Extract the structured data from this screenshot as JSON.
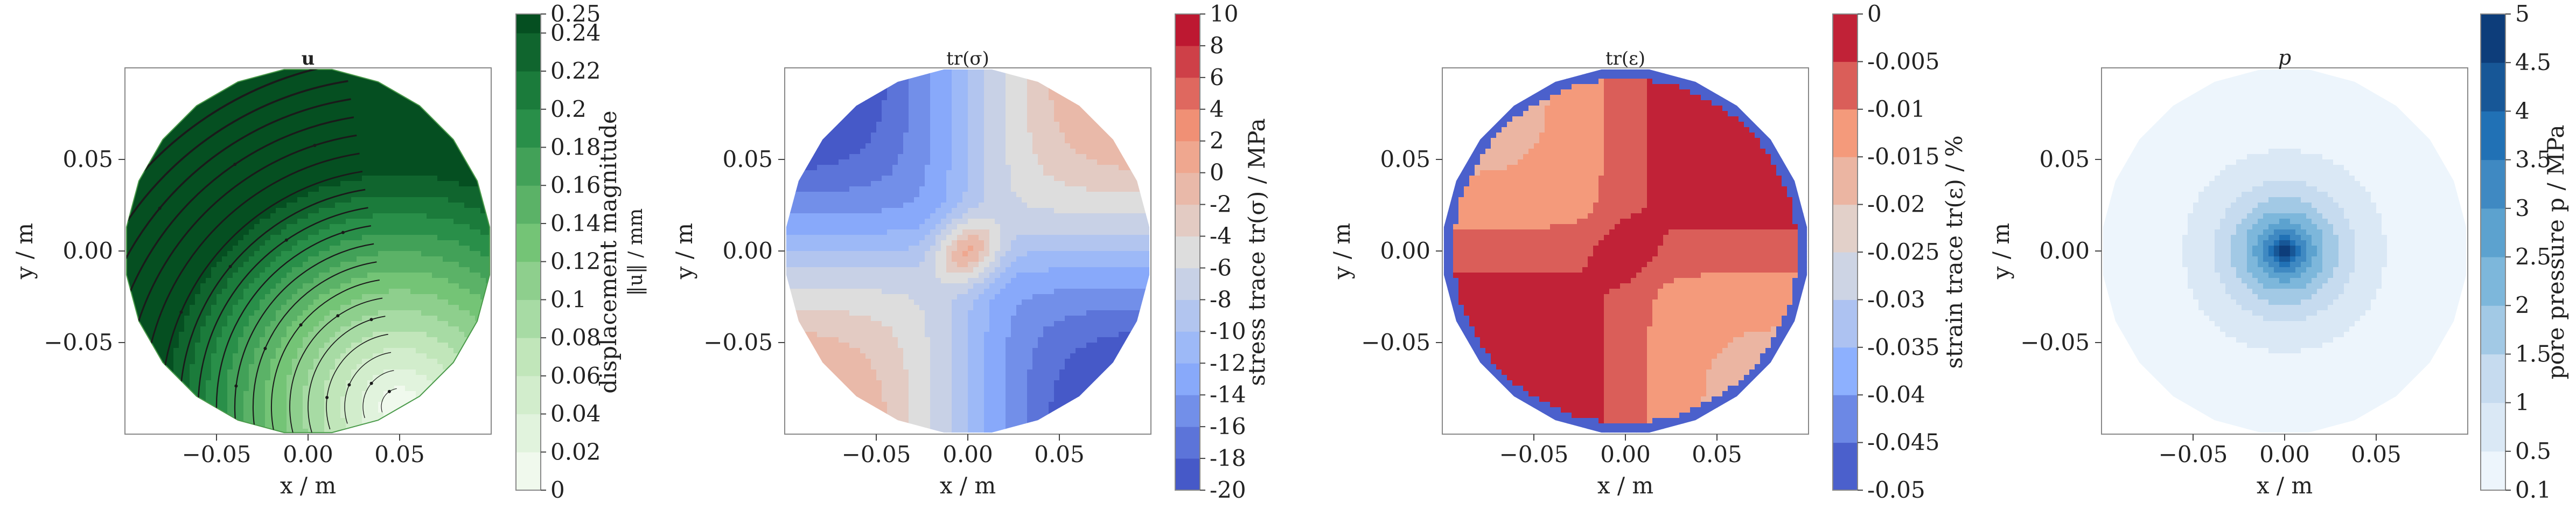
{
  "chart_data": [
    {
      "type": "heatmap",
      "subplot": "displacement",
      "title": "u",
      "xlabel": "x / m",
      "ylabel": "y / m",
      "xlim": [
        -0.1,
        0.1
      ],
      "ylim": [
        -0.1,
        0.1
      ],
      "xticks": [
        "−0.05",
        "0.00",
        "0.05"
      ],
      "yticks": [
        "0.05",
        "0.00",
        "−0.05"
      ],
      "colorbar_label_line1": "displacement magnitude",
      "colorbar_label_line2": "‖u‖ / mm",
      "colorbar_ticks": [
        "0.25",
        "0.24",
        "0.22",
        "0.2",
        "0.18",
        "0.16",
        "0.14",
        "0.12",
        "0.1",
        "0.08",
        "0.06",
        "0.04",
        "0.02",
        "0"
      ],
      "levels": [
        0,
        0.02,
        0.04,
        0.06,
        0.08,
        0.1,
        0.12,
        0.14,
        0.16,
        0.18,
        0.2,
        0.22,
        0.24,
        0.25
      ],
      "colormap": "Greens",
      "overlay": "streamlines",
      "field_description": "magnitude increases from ~0 at bottom-right (x≈0.05,y≈-0.08) to ~0.25 at top-left"
    },
    {
      "type": "heatmap",
      "subplot": "stress_trace",
      "title": "tr(σ)",
      "xlabel": "x / m",
      "ylabel": "y / m",
      "xlim": [
        -0.1,
        0.1
      ],
      "ylim": [
        -0.1,
        0.1
      ],
      "xticks": [
        "−0.05",
        "0.00",
        "0.05"
      ],
      "yticks": [
        "0.05",
        "0.00",
        "−0.05"
      ],
      "colorbar_label": "stress trace tr(σ) / MPa",
      "colorbar_ticks": [
        "10",
        "8",
        "6",
        "4",
        "2",
        "0",
        "-2",
        "-4",
        "-6",
        "-8",
        "-10",
        "-12",
        "-14",
        "-16",
        "-18",
        "-20"
      ],
      "levels": [
        -20,
        -18,
        -16,
        -14,
        -12,
        -10,
        -8,
        -6,
        -4,
        -2,
        0,
        2,
        4,
        6,
        8,
        10
      ],
      "colormap": "coolwarm",
      "field_description": "around -10 in the middle, ~-2 at center, ~-20 toward left and bottom-right edges, ~0 lobes at top-right and bottom-left"
    },
    {
      "type": "heatmap",
      "subplot": "strain_trace",
      "title": "tr(ε)",
      "xlabel": "x / m",
      "ylabel": "y / m",
      "xlim": [
        -0.1,
        0.1
      ],
      "ylim": [
        -0.1,
        0.1
      ],
      "xticks": [
        "−0.05",
        "0.00",
        "0.05"
      ],
      "yticks": [
        "0.05",
        "0.00",
        "−0.05"
      ],
      "colorbar_label": "strain trace tr(ε) / %",
      "colorbar_ticks": [
        "0",
        "-0.005",
        "-0.01",
        "-0.015",
        "-0.02",
        "-0.025",
        "-0.03",
        "-0.035",
        "-0.04",
        "-0.045",
        "-0.05"
      ],
      "levels": [
        -0.05,
        -0.045,
        -0.04,
        -0.035,
        -0.03,
        -0.025,
        -0.02,
        -0.015,
        -0.01,
        -0.005,
        0
      ],
      "colormap": "coolwarm",
      "field_description": "mostly -0.005 to -0.01; ~0 at center and top-right/bottom-left lobes; -0.015 lobes top-left and bottom-right; -0.05 thin ring at boundary"
    },
    {
      "type": "heatmap",
      "subplot": "pore_pressure",
      "title": "p",
      "xlabel": "x / m",
      "ylabel": "y / m",
      "xlim": [
        -0.1,
        0.1
      ],
      "ylim": [
        -0.1,
        0.1
      ],
      "xticks": [
        "−0.05",
        "0.00",
        "0.05"
      ],
      "yticks": [
        "0.05",
        "0.00",
        "−0.05"
      ],
      "colorbar_label": "pore pressure p / MPa",
      "colorbar_ticks": [
        "5",
        "4.5",
        "4",
        "3.5",
        "3",
        "2.5",
        "2",
        "1.5",
        "1",
        "0.5",
        "0.1"
      ],
      "levels": [
        0.1,
        0.5,
        1,
        1.5,
        2,
        2.5,
        3,
        3.5,
        4,
        4.5,
        5
      ],
      "colormap": "Blues",
      "field_description": "radially decreasing from 5 at center to 0.1 at boundary"
    }
  ]
}
